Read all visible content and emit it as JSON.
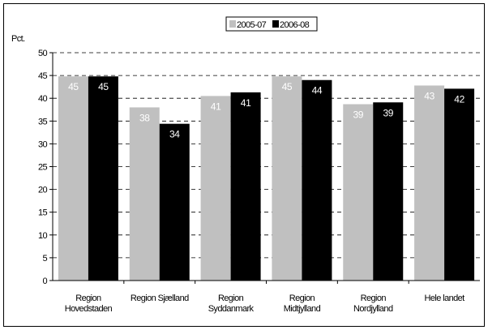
{
  "chart_data": {
    "type": "bar",
    "ylabel": "Pct.",
    "ylim": [
      0,
      50
    ],
    "yticks": [
      0,
      5,
      10,
      15,
      20,
      25,
      30,
      35,
      40,
      45,
      50
    ],
    "grid": "dashed horizontal",
    "legend_position": "top-center",
    "categories": [
      [
        "Region",
        "Hovedstaden"
      ],
      [
        "Region Sjælland"
      ],
      [
        "Region",
        "Syddanmark"
      ],
      [
        "Region",
        "Midtjylland"
      ],
      [
        "Region",
        "Nordjylland"
      ],
      [
        "Hele landet"
      ]
    ],
    "series": [
      {
        "name": "2005-07",
        "color": "#c0c0c0",
        "values": [
          44.8,
          38.0,
          40.5,
          44.8,
          38.7,
          42.8
        ],
        "labels": [
          "45",
          "38",
          "41",
          "45",
          "39",
          "43"
        ]
      },
      {
        "name": "2006-08",
        "color": "#000000",
        "values": [
          44.8,
          34.4,
          41.3,
          44.0,
          39.1,
          42.1
        ],
        "labels": [
          "45",
          "34",
          "41",
          "44",
          "39",
          "42"
        ]
      }
    ]
  }
}
